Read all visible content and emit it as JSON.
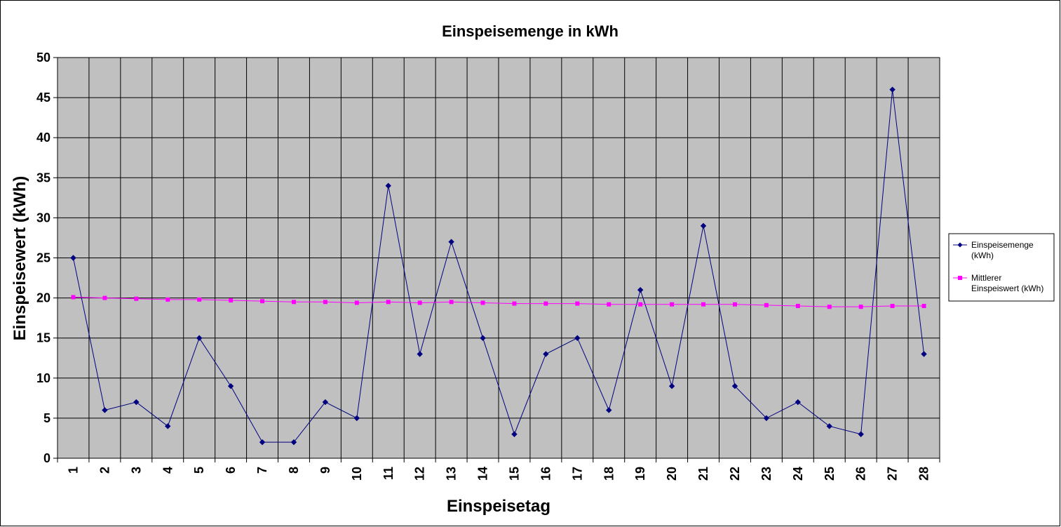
{
  "chart_data": {
    "type": "line",
    "title": "Einspeisemenge in kWh",
    "xlabel": "Einspeisetag",
    "ylabel": "Einspeisewert  (kWh)",
    "x": [
      1,
      2,
      3,
      4,
      5,
      6,
      7,
      8,
      9,
      10,
      11,
      12,
      13,
      14,
      15,
      16,
      17,
      18,
      19,
      20,
      21,
      22,
      23,
      24,
      25,
      26,
      27,
      28
    ],
    "ylim": [
      0,
      50
    ],
    "yticks": [
      0,
      5,
      10,
      15,
      20,
      25,
      30,
      35,
      40,
      45,
      50
    ],
    "grid": true,
    "legend_position": "right",
    "series": [
      {
        "name_lines": [
          "Einspeisemenge",
          "(kWh)"
        ],
        "color": "#000080",
        "marker": "diamond",
        "values": [
          25,
          6,
          7,
          4,
          15,
          9,
          2,
          2,
          7,
          5,
          34,
          13,
          27,
          15,
          3,
          13,
          15,
          6,
          21,
          9,
          29,
          9,
          5,
          7,
          4,
          3,
          46,
          13
        ]
      },
      {
        "name_lines": [
          "Mittlerer",
          "Einspeiswert (kWh)"
        ],
        "color": "#ff00ff",
        "marker": "square",
        "values": [
          20.1,
          20.0,
          19.9,
          19.8,
          19.8,
          19.7,
          19.6,
          19.5,
          19.5,
          19.4,
          19.5,
          19.4,
          19.5,
          19.4,
          19.3,
          19.3,
          19.3,
          19.2,
          19.2,
          19.2,
          19.2,
          19.2,
          19.1,
          19.0,
          18.9,
          18.9,
          19.0,
          19.0
        ]
      }
    ]
  }
}
